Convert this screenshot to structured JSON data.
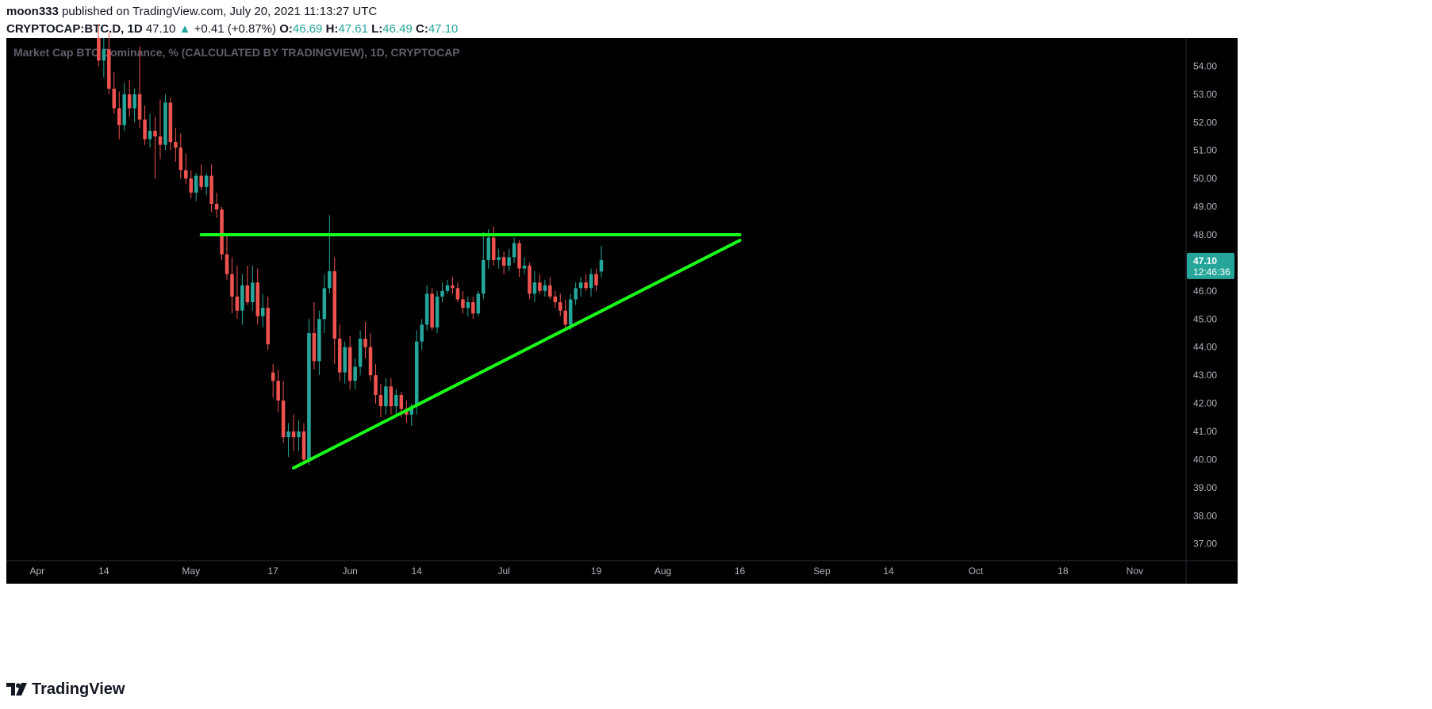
{
  "header": {
    "author": "moon333",
    "published": "published on TradingView.com, July 20, 2021 11:13:27 UTC",
    "symbol": "CRYPTOCAP:BTC.D, 1D",
    "last": "47.10",
    "change": "+0.41 (+0.87%)",
    "o_label": "O:",
    "o_value": "46.69",
    "h_label": "H:",
    "h_value": "47.61",
    "l_label": "L:",
    "l_value": "46.49",
    "c_label": "C:",
    "c_value": "47.10"
  },
  "footer": {
    "brand": "TradingView"
  },
  "colors": {
    "background": "#000000",
    "up": "#26a69a",
    "down": "#ef5350",
    "trendline": "#1aff1a",
    "axis_text": "#b2b5be",
    "price_badge": "#26a69a"
  },
  "chart_data": {
    "type": "candlestick",
    "title": "Market Cap BTC Dominance, % (CALCULATED BY TRADINGVIEW), 1D, CRYPTOCAP",
    "ylim": [
      36.4,
      55.0
    ],
    "xlim": [
      "2021-03-26",
      "2021-11-11"
    ],
    "y_ticks": [
      "54.00",
      "53.00",
      "52.00",
      "51.00",
      "50.00",
      "49.00",
      "48.00",
      "47.00",
      "46.00",
      "45.00",
      "44.00",
      "43.00",
      "42.00",
      "41.00",
      "40.00",
      "39.00",
      "38.00",
      "37.00"
    ],
    "x_ticks": [
      {
        "date": "2021-04-01",
        "label": "Apr"
      },
      {
        "date": "2021-04-14",
        "label": "14"
      },
      {
        "date": "2021-05-01",
        "label": "May"
      },
      {
        "date": "2021-05-17",
        "label": "17"
      },
      {
        "date": "2021-06-01",
        "label": "Jun"
      },
      {
        "date": "2021-06-14",
        "label": "14"
      },
      {
        "date": "2021-07-01",
        "label": "Jul"
      },
      {
        "date": "2021-07-19",
        "label": "19"
      },
      {
        "date": "2021-08-01",
        "label": "Aug"
      },
      {
        "date": "2021-08-16",
        "label": "16"
      },
      {
        "date": "2021-09-01",
        "label": "Sep"
      },
      {
        "date": "2021-09-14",
        "label": "14"
      },
      {
        "date": "2021-10-01",
        "label": "Oct"
      },
      {
        "date": "2021-10-18",
        "label": "18"
      },
      {
        "date": "2021-11-01",
        "label": "Nov"
      }
    ],
    "price_label": {
      "value": 47.1,
      "text": "47.10",
      "countdown": "12:46:36"
    },
    "candles": [
      {
        "d": "2021-04-13",
        "o": 55.0,
        "h": 55.5,
        "l": 54.0,
        "c": 54.2
      },
      {
        "d": "2021-04-14",
        "o": 54.2,
        "h": 55.0,
        "l": 53.6,
        "c": 54.6
      },
      {
        "d": "2021-04-15",
        "o": 54.6,
        "h": 55.2,
        "l": 53.0,
        "c": 53.2
      },
      {
        "d": "2021-04-16",
        "o": 53.2,
        "h": 53.8,
        "l": 52.3,
        "c": 52.5
      },
      {
        "d": "2021-04-17",
        "o": 52.5,
        "h": 53.1,
        "l": 51.4,
        "c": 51.9
      },
      {
        "d": "2021-04-18",
        "o": 51.9,
        "h": 53.4,
        "l": 51.7,
        "c": 53.0
      },
      {
        "d": "2021-04-19",
        "o": 53.0,
        "h": 53.5,
        "l": 52.2,
        "c": 52.5
      },
      {
        "d": "2021-04-20",
        "o": 52.5,
        "h": 53.2,
        "l": 52.0,
        "c": 53.0
      },
      {
        "d": "2021-04-21",
        "o": 53.0,
        "h": 54.7,
        "l": 51.8,
        "c": 52.1
      },
      {
        "d": "2021-04-22",
        "o": 52.1,
        "h": 52.6,
        "l": 51.2,
        "c": 51.4
      },
      {
        "d": "2021-04-23",
        "o": 51.4,
        "h": 52.3,
        "l": 51.1,
        "c": 51.7
      },
      {
        "d": "2021-04-24",
        "o": 51.7,
        "h": 52.2,
        "l": 50.0,
        "c": 51.5
      },
      {
        "d": "2021-04-25",
        "o": 51.5,
        "h": 52.8,
        "l": 50.7,
        "c": 51.2
      },
      {
        "d": "2021-04-26",
        "o": 51.2,
        "h": 53.0,
        "l": 51.0,
        "c": 52.7
      },
      {
        "d": "2021-04-27",
        "o": 52.7,
        "h": 52.9,
        "l": 51.0,
        "c": 51.3
      },
      {
        "d": "2021-04-28",
        "o": 51.3,
        "h": 51.8,
        "l": 50.6,
        "c": 51.1
      },
      {
        "d": "2021-04-29",
        "o": 51.1,
        "h": 51.6,
        "l": 50.0,
        "c": 50.3
      },
      {
        "d": "2021-04-30",
        "o": 50.3,
        "h": 50.9,
        "l": 49.8,
        "c": 50.0
      },
      {
        "d": "2021-05-01",
        "o": 50.0,
        "h": 50.3,
        "l": 49.3,
        "c": 49.5
      },
      {
        "d": "2021-05-02",
        "o": 49.5,
        "h": 50.2,
        "l": 49.2,
        "c": 50.1
      },
      {
        "d": "2021-05-03",
        "o": 50.1,
        "h": 50.5,
        "l": 49.6,
        "c": 49.7
      },
      {
        "d": "2021-05-04",
        "o": 49.7,
        "h": 50.2,
        "l": 49.4,
        "c": 50.1
      },
      {
        "d": "2021-05-05",
        "o": 50.1,
        "h": 50.5,
        "l": 48.8,
        "c": 49.1
      },
      {
        "d": "2021-05-06",
        "o": 49.1,
        "h": 49.5,
        "l": 48.6,
        "c": 48.9
      },
      {
        "d": "2021-05-07",
        "o": 48.9,
        "h": 49.0,
        "l": 47.1,
        "c": 47.3
      },
      {
        "d": "2021-05-08",
        "o": 47.3,
        "h": 48.0,
        "l": 46.4,
        "c": 46.6
      },
      {
        "d": "2021-05-09",
        "o": 46.6,
        "h": 47.2,
        "l": 45.2,
        "c": 45.8
      },
      {
        "d": "2021-05-10",
        "o": 45.8,
        "h": 46.9,
        "l": 45.0,
        "c": 45.3
      },
      {
        "d": "2021-05-11",
        "o": 45.3,
        "h": 46.6,
        "l": 44.8,
        "c": 46.2
      },
      {
        "d": "2021-05-12",
        "o": 46.2,
        "h": 46.9,
        "l": 45.5,
        "c": 45.6
      },
      {
        "d": "2021-05-13",
        "o": 45.6,
        "h": 46.9,
        "l": 45.3,
        "c": 46.3
      },
      {
        "d": "2021-05-14",
        "o": 46.3,
        "h": 46.8,
        "l": 44.8,
        "c": 45.1
      },
      {
        "d": "2021-05-15",
        "o": 45.1,
        "h": 45.9,
        "l": 44.7,
        "c": 45.4
      },
      {
        "d": "2021-05-16",
        "o": 45.4,
        "h": 45.8,
        "l": 43.9,
        "c": 44.1
      },
      {
        "d": "2021-05-17",
        "o": 43.1,
        "h": 43.4,
        "l": 42.2,
        "c": 42.8
      },
      {
        "d": "2021-05-18",
        "o": 42.8,
        "h": 43.2,
        "l": 41.7,
        "c": 42.1
      },
      {
        "d": "2021-05-19",
        "o": 42.1,
        "h": 42.8,
        "l": 40.6,
        "c": 40.8
      },
      {
        "d": "2021-05-20",
        "o": 40.8,
        "h": 41.3,
        "l": 40.1,
        "c": 41.0
      },
      {
        "d": "2021-05-21",
        "o": 41.0,
        "h": 41.6,
        "l": 40.3,
        "c": 40.8
      },
      {
        "d": "2021-05-22",
        "o": 40.8,
        "h": 41.4,
        "l": 40.3,
        "c": 41.0
      },
      {
        "d": "2021-05-23",
        "o": 41.0,
        "h": 41.3,
        "l": 39.9,
        "c": 40.0
      },
      {
        "d": "2021-05-24",
        "o": 40.0,
        "h": 45.0,
        "l": 39.8,
        "c": 44.5
      },
      {
        "d": "2021-05-25",
        "o": 44.5,
        "h": 45.6,
        "l": 43.2,
        "c": 43.5
      },
      {
        "d": "2021-05-26",
        "o": 43.5,
        "h": 45.3,
        "l": 43.0,
        "c": 45.0
      },
      {
        "d": "2021-05-27",
        "o": 45.0,
        "h": 46.6,
        "l": 44.5,
        "c": 46.1
      },
      {
        "d": "2021-05-28",
        "o": 46.1,
        "h": 48.7,
        "l": 45.9,
        "c": 46.7
      },
      {
        "d": "2021-05-29",
        "o": 46.7,
        "h": 47.2,
        "l": 43.4,
        "c": 44.3
      },
      {
        "d": "2021-05-30",
        "o": 44.3,
        "h": 44.8,
        "l": 42.8,
        "c": 43.1
      },
      {
        "d": "2021-05-31",
        "o": 43.1,
        "h": 44.2,
        "l": 42.7,
        "c": 44.0
      },
      {
        "d": "2021-06-01",
        "o": 44.0,
        "h": 44.4,
        "l": 42.5,
        "c": 42.8
      },
      {
        "d": "2021-06-02",
        "o": 42.8,
        "h": 43.6,
        "l": 42.5,
        "c": 43.3
      },
      {
        "d": "2021-06-03",
        "o": 43.3,
        "h": 44.6,
        "l": 43.0,
        "c": 44.3
      },
      {
        "d": "2021-06-04",
        "o": 44.3,
        "h": 44.9,
        "l": 43.6,
        "c": 44.0
      },
      {
        "d": "2021-06-05",
        "o": 44.0,
        "h": 44.5,
        "l": 42.8,
        "c": 43.0
      },
      {
        "d": "2021-06-06",
        "o": 43.0,
        "h": 43.4,
        "l": 42.0,
        "c": 42.3
      },
      {
        "d": "2021-06-07",
        "o": 42.3,
        "h": 42.7,
        "l": 41.5,
        "c": 41.9
      },
      {
        "d": "2021-06-08",
        "o": 41.9,
        "h": 42.9,
        "l": 41.6,
        "c": 42.6
      },
      {
        "d": "2021-06-09",
        "o": 42.6,
        "h": 42.9,
        "l": 41.6,
        "c": 41.9
      },
      {
        "d": "2021-06-10",
        "o": 41.9,
        "h": 42.5,
        "l": 41.6,
        "c": 42.3
      },
      {
        "d": "2021-06-11",
        "o": 42.3,
        "h": 42.4,
        "l": 41.5,
        "c": 41.8
      },
      {
        "d": "2021-06-12",
        "o": 41.8,
        "h": 42.1,
        "l": 41.3,
        "c": 41.6
      },
      {
        "d": "2021-06-13",
        "o": 41.6,
        "h": 42.0,
        "l": 41.2,
        "c": 41.9
      },
      {
        "d": "2021-06-14",
        "o": 41.9,
        "h": 44.6,
        "l": 41.6,
        "c": 44.2
      },
      {
        "d": "2021-06-15",
        "o": 44.2,
        "h": 45.0,
        "l": 43.9,
        "c": 44.8
      },
      {
        "d": "2021-06-16",
        "o": 44.8,
        "h": 46.2,
        "l": 44.6,
        "c": 45.9
      },
      {
        "d": "2021-06-17",
        "o": 45.9,
        "h": 46.1,
        "l": 44.6,
        "c": 44.7
      },
      {
        "d": "2021-06-18",
        "o": 44.7,
        "h": 46.0,
        "l": 44.5,
        "c": 45.8
      },
      {
        "d": "2021-06-19",
        "o": 45.8,
        "h": 46.3,
        "l": 45.6,
        "c": 46.0
      },
      {
        "d": "2021-06-20",
        "o": 46.0,
        "h": 46.4,
        "l": 45.9,
        "c": 46.2
      },
      {
        "d": "2021-06-21",
        "o": 46.2,
        "h": 46.5,
        "l": 45.9,
        "c": 46.1
      },
      {
        "d": "2021-06-22",
        "o": 46.1,
        "h": 46.3,
        "l": 45.6,
        "c": 45.7
      },
      {
        "d": "2021-06-23",
        "o": 45.7,
        "h": 46.0,
        "l": 45.2,
        "c": 45.4
      },
      {
        "d": "2021-06-24",
        "o": 45.4,
        "h": 45.8,
        "l": 45.1,
        "c": 45.6
      },
      {
        "d": "2021-06-25",
        "o": 45.6,
        "h": 45.8,
        "l": 45.0,
        "c": 45.2
      },
      {
        "d": "2021-06-26",
        "o": 45.2,
        "h": 46.0,
        "l": 45.1,
        "c": 45.9
      },
      {
        "d": "2021-06-27",
        "o": 45.9,
        "h": 48.1,
        "l": 45.7,
        "c": 47.1
      },
      {
        "d": "2021-06-28",
        "o": 47.1,
        "h": 48.2,
        "l": 46.8,
        "c": 47.9
      },
      {
        "d": "2021-06-29",
        "o": 47.9,
        "h": 48.3,
        "l": 46.9,
        "c": 47.1
      },
      {
        "d": "2021-06-30",
        "o": 47.1,
        "h": 47.5,
        "l": 46.8,
        "c": 47.2
      },
      {
        "d": "2021-07-01",
        "o": 47.2,
        "h": 47.4,
        "l": 46.6,
        "c": 46.9
      },
      {
        "d": "2021-07-02",
        "o": 46.9,
        "h": 47.5,
        "l": 46.7,
        "c": 47.2
      },
      {
        "d": "2021-07-03",
        "o": 47.2,
        "h": 47.9,
        "l": 47.0,
        "c": 47.7
      },
      {
        "d": "2021-07-04",
        "o": 47.7,
        "h": 47.8,
        "l": 46.5,
        "c": 46.8
      },
      {
        "d": "2021-07-05",
        "o": 46.8,
        "h": 47.2,
        "l": 46.6,
        "c": 46.9
      },
      {
        "d": "2021-07-06",
        "o": 46.9,
        "h": 47.0,
        "l": 45.7,
        "c": 45.9
      },
      {
        "d": "2021-07-07",
        "o": 45.9,
        "h": 46.7,
        "l": 45.6,
        "c": 46.3
      },
      {
        "d": "2021-07-08",
        "o": 46.3,
        "h": 46.6,
        "l": 45.9,
        "c": 46.0
      },
      {
        "d": "2021-07-09",
        "o": 46.0,
        "h": 46.4,
        "l": 45.8,
        "c": 46.2
      },
      {
        "d": "2021-07-10",
        "o": 46.2,
        "h": 46.5,
        "l": 45.7,
        "c": 45.8
      },
      {
        "d": "2021-07-11",
        "o": 45.8,
        "h": 46.0,
        "l": 45.4,
        "c": 45.6
      },
      {
        "d": "2021-07-12",
        "o": 45.6,
        "h": 45.9,
        "l": 45.1,
        "c": 45.3
      },
      {
        "d": "2021-07-13",
        "o": 45.3,
        "h": 45.7,
        "l": 44.6,
        "c": 44.8
      },
      {
        "d": "2021-07-14",
        "o": 44.8,
        "h": 45.9,
        "l": 44.6,
        "c": 45.7
      },
      {
        "d": "2021-07-15",
        "o": 45.7,
        "h": 46.3,
        "l": 45.5,
        "c": 46.1
      },
      {
        "d": "2021-07-16",
        "o": 46.1,
        "h": 46.5,
        "l": 45.8,
        "c": 46.3
      },
      {
        "d": "2021-07-17",
        "o": 46.3,
        "h": 46.6,
        "l": 46.0,
        "c": 46.1
      },
      {
        "d": "2021-07-18",
        "o": 46.1,
        "h": 46.8,
        "l": 45.8,
        "c": 46.6
      },
      {
        "d": "2021-07-19",
        "o": 46.6,
        "h": 46.8,
        "l": 46.0,
        "c": 46.2
      },
      {
        "d": "2021-07-20",
        "o": 46.69,
        "h": 47.61,
        "l": 46.49,
        "c": 47.1
      }
    ],
    "annotations": [
      {
        "type": "horizontal-resistance",
        "x1": "2021-05-03",
        "y1": 48.0,
        "x2": "2021-08-16",
        "y2": 48.0
      },
      {
        "type": "rising-support",
        "x1": "2021-05-21",
        "y1": 39.7,
        "x2": "2021-08-16",
        "y2": 47.8
      }
    ]
  }
}
